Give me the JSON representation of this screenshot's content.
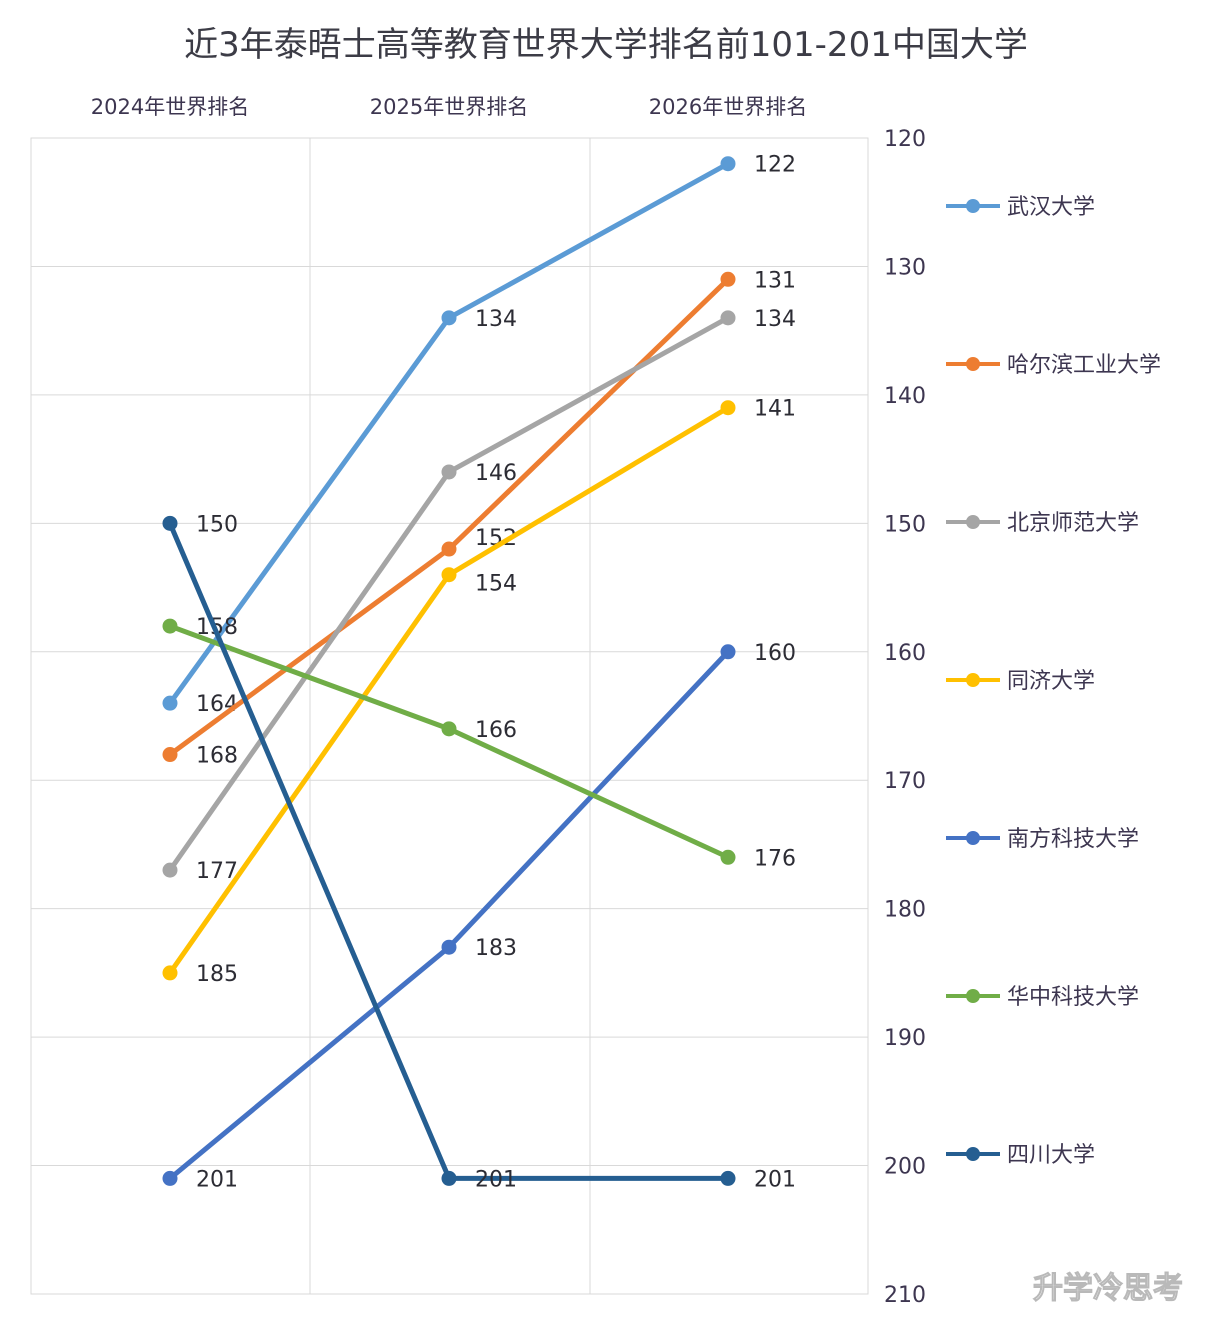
{
  "chart_data": {
    "type": "line",
    "title": "近3年泰晤士高等教育世界大学排名前101-201中国大学",
    "categories": [
      "2024年世界排名",
      "2025年世界排名",
      "2026年世界排名"
    ],
    "y_axis": {
      "ticks": [
        120,
        130,
        140,
        150,
        160,
        170,
        180,
        190,
        200,
        210
      ],
      "ylim": [
        120,
        210
      ],
      "reversed": true
    },
    "grid": true,
    "legend_position": "right",
    "series": [
      {
        "name": "武汉大学",
        "color": "#5b9bd5",
        "values": [
          164,
          134,
          122
        ]
      },
      {
        "name": "哈尔滨工业大学",
        "color": "#ed7d31",
        "values": [
          168,
          152,
          131
        ]
      },
      {
        "name": "北京师范大学",
        "color": "#a5a5a5",
        "values": [
          177,
          146,
          134
        ]
      },
      {
        "name": "同济大学",
        "color": "#ffc000",
        "values": [
          185,
          154,
          141
        ]
      },
      {
        "name": "南方科技大学",
        "color": "#4472c4",
        "values": [
          201,
          183,
          160
        ]
      },
      {
        "name": "华中科技大学",
        "color": "#70ad47",
        "values": [
          158,
          166,
          176
        ]
      },
      {
        "name": "四川大学",
        "color": "#255e91",
        "values": [
          150,
          201,
          201
        ]
      }
    ]
  },
  "watermark": "升学冷思考"
}
